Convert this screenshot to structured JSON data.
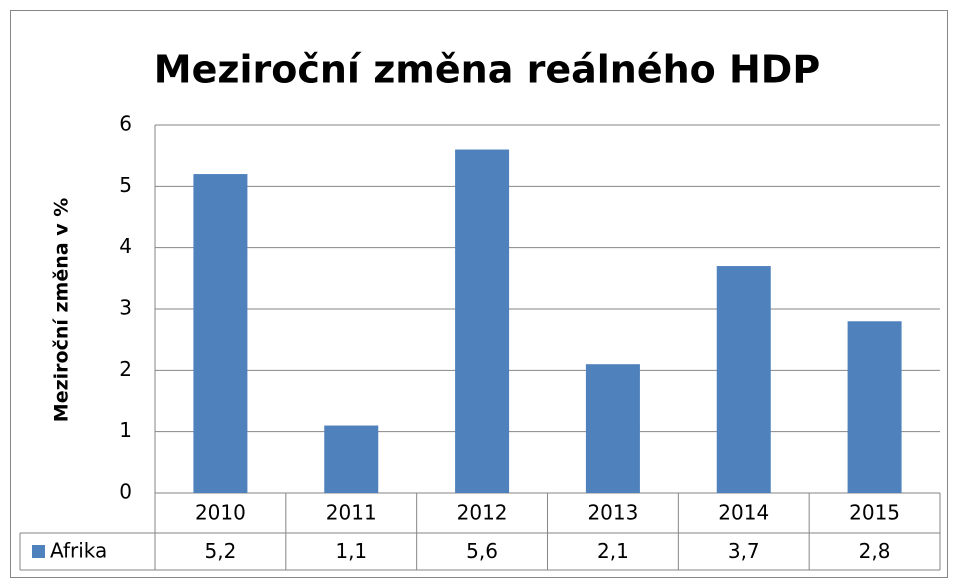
{
  "chart_data": {
    "type": "bar",
    "title": "Meziroční změna reálného HDP",
    "y_label": "Meziroční změna v %",
    "categories": [
      "2010",
      "2011",
      "2012",
      "2013",
      "2014",
      "2015"
    ],
    "series": [
      {
        "name": "Afrika",
        "color": "#4f81bd",
        "values": [
          5.2,
          1.1,
          5.6,
          2.1,
          3.7,
          2.8
        ],
        "value_labels": [
          "5,2",
          "1,1",
          "5,6",
          "2,1",
          "3,7",
          "2,8"
        ]
      }
    ],
    "ylim": [
      0,
      6
    ],
    "yticks": [
      0,
      1,
      2,
      3,
      4,
      5,
      6
    ],
    "grid": true
  }
}
